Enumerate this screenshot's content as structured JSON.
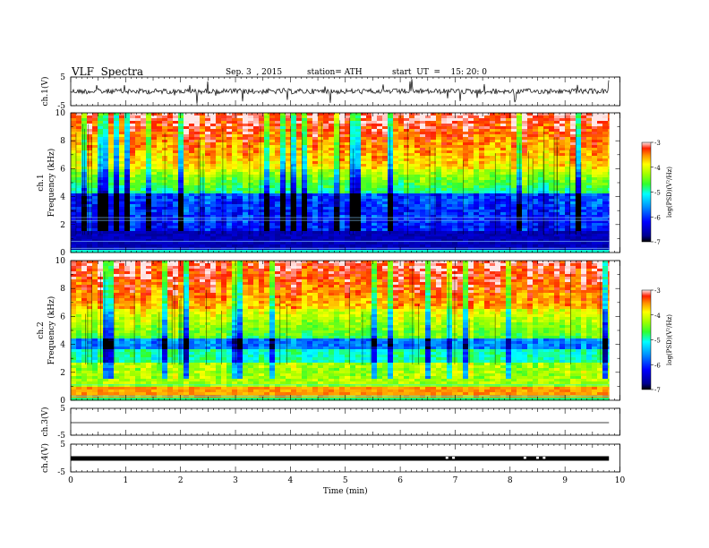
{
  "header": {
    "title": "VLF  Spectra",
    "date": "Sep. 3  , 2015",
    "station": "station= ATH",
    "start": "start  UT  =    15: 20: 0"
  },
  "chart_data": [
    {
      "type": "line",
      "ylabel": "ch.1(V)",
      "ylim": [
        -5,
        5
      ],
      "yticks": [
        "5",
        "-5"
      ],
      "xlim": [
        0,
        10
      ],
      "trace": "noisy waveform, spikes reaching about ±5 V"
    },
    {
      "type": "heatmap",
      "ylabel": "ch.1\nFrequency (kHz)",
      "ylabel_lines": [
        "ch.1",
        "Frequency (kHz)"
      ],
      "ylim": [
        0,
        10
      ],
      "yticks": [
        "0",
        "2",
        "4",
        "6",
        "8",
        "10"
      ],
      "xlim": [
        0,
        10
      ],
      "data_end_min": 9.8,
      "colorbar": {
        "label": "log(PSD)(V²/Hz)",
        "range": [
          -7,
          -3
        ],
        "ticks": [
          "-3",
          "-4",
          "-5",
          "-6",
          "-7"
        ]
      }
    },
    {
      "type": "heatmap",
      "ylabel": "ch.2\nFrequency (kHz)",
      "ylabel_lines": [
        "ch.2",
        "Frequency (kHz)"
      ],
      "ylim": [
        0,
        10
      ],
      "yticks": [
        "0",
        "2",
        "4",
        "6",
        "8",
        "10"
      ],
      "xlim": [
        0,
        10
      ],
      "data_end_min": 9.8,
      "colorbar": {
        "label": "log(PSD)(V²/Hz)",
        "range": [
          -7,
          -3
        ],
        "ticks": [
          "-3",
          "-4",
          "-5",
          "-6",
          "-7"
        ]
      }
    },
    {
      "type": "line",
      "ylabel": "ch.3(V)",
      "ylim": [
        -5,
        5
      ],
      "yticks": [
        "5",
        "-5"
      ],
      "xlim": [
        0,
        10
      ],
      "trace": "flat line near 0 V"
    },
    {
      "type": "line",
      "ylabel": "ch.4(V)",
      "ylim": [
        -5,
        5
      ],
      "yticks": [
        "5",
        "-5"
      ],
      "xlim": [
        0,
        10
      ],
      "trace": "thick band near 0 V with small gaps",
      "gaps_min": [
        6.85,
        6.97,
        8.27,
        8.5,
        8.62
      ],
      "xlabel": "Time  (min)",
      "xticks": [
        "0",
        "1",
        "2",
        "3",
        "4",
        "5",
        "6",
        "7",
        "8",
        "9",
        "10"
      ]
    }
  ]
}
